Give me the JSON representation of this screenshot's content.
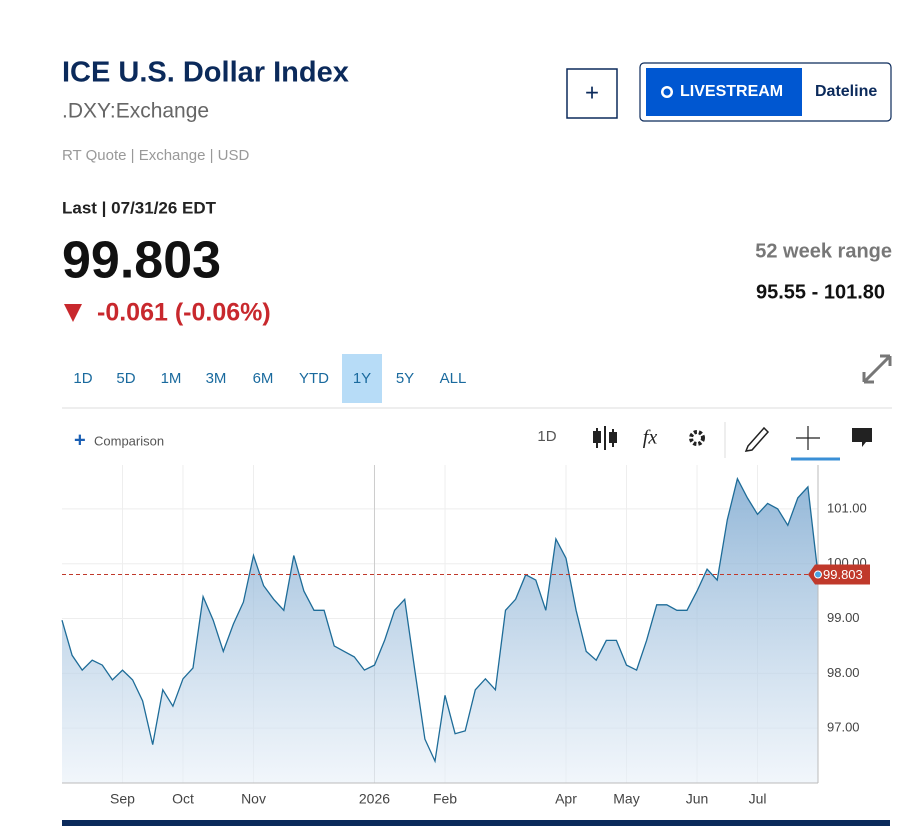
{
  "header": {
    "title": "ICE U.S. Dollar Index",
    "symbol": ".DXY:Exchange",
    "quote_info": "RT Quote | Exchange | USD",
    "add_button": "+",
    "livestream": "LIVESTREAM",
    "dateline": "Dateline"
  },
  "quote": {
    "last_label": "Last | 07/31/26 EDT",
    "price": "99.803",
    "change": "-0.061 (-0.06%)",
    "range_label": "52 week range",
    "range": "95.55 - 101.80"
  },
  "tabs": {
    "items": [
      "1D",
      "5D",
      "1M",
      "3M",
      "6M",
      "YTD",
      "1Y",
      "5Y",
      "ALL"
    ],
    "selected": 6
  },
  "toolbar": {
    "comparison_icon": "+",
    "comparison": "Comparison",
    "interval": "1D"
  },
  "chart_data": {
    "type": "line",
    "color": "#1e6c98",
    "last_color": "#c0392b",
    "last_value": 99.803,
    "categories": [
      null,
      null,
      null,
      null,
      null,
      null,
      "Sep",
      null,
      null,
      null,
      null,
      null,
      "Oct",
      null,
      null,
      null,
      null,
      null,
      null,
      "Nov",
      null,
      null,
      null,
      null,
      null,
      null,
      null,
      null,
      null,
      null,
      null,
      "2026",
      null,
      null,
      null,
      null,
      null,
      null,
      "Feb",
      null,
      null,
      null,
      null,
      null,
      null,
      null,
      null,
      null,
      null,
      null,
      "Apr",
      null,
      null,
      null,
      null,
      null,
      "May",
      null,
      null,
      null,
      null,
      null,
      null,
      "Jun",
      null,
      null,
      null,
      null,
      null,
      "Jul",
      null,
      null,
      null,
      null,
      null,
      null
    ],
    "values": [
      98.97,
      98.33,
      98.06,
      98.24,
      98.15,
      97.88,
      98.06,
      97.88,
      97.5,
      96.7,
      97.7,
      97.4,
      97.9,
      98.1,
      99.4,
      98.97,
      98.4,
      98.9,
      99.3,
      100.15,
      99.6,
      99.35,
      99.15,
      100.15,
      99.5,
      99.15,
      99.15,
      98.5,
      98.4,
      98.3,
      98.06,
      98.15,
      98.6,
      99.15,
      99.35,
      98.06,
      96.8,
      96.4,
      97.6,
      96.9,
      96.95,
      97.7,
      97.9,
      97.7,
      99.15,
      99.35,
      99.8,
      99.7,
      99.15,
      100.45,
      100.1,
      99.15,
      98.4,
      98.24,
      98.6,
      98.6,
      98.15,
      98.06,
      98.6,
      99.25,
      99.25,
      99.15,
      99.15,
      99.5,
      99.9,
      99.7,
      100.8,
      101.55,
      101.2,
      100.9,
      101.1,
      101.0,
      100.7,
      101.2,
      101.4,
      99.803
    ],
    "ylim": [
      96.0,
      101.8
    ],
    "yticks": [
      {
        "value": 97,
        "label": "97.00"
      },
      {
        "value": 98,
        "label": "98.00"
      },
      {
        "value": 99,
        "label": "99.00"
      },
      {
        "value": 100,
        "label": "100.00"
      },
      {
        "value": 101,
        "label": "101.00"
      }
    ],
    "grid": true
  }
}
